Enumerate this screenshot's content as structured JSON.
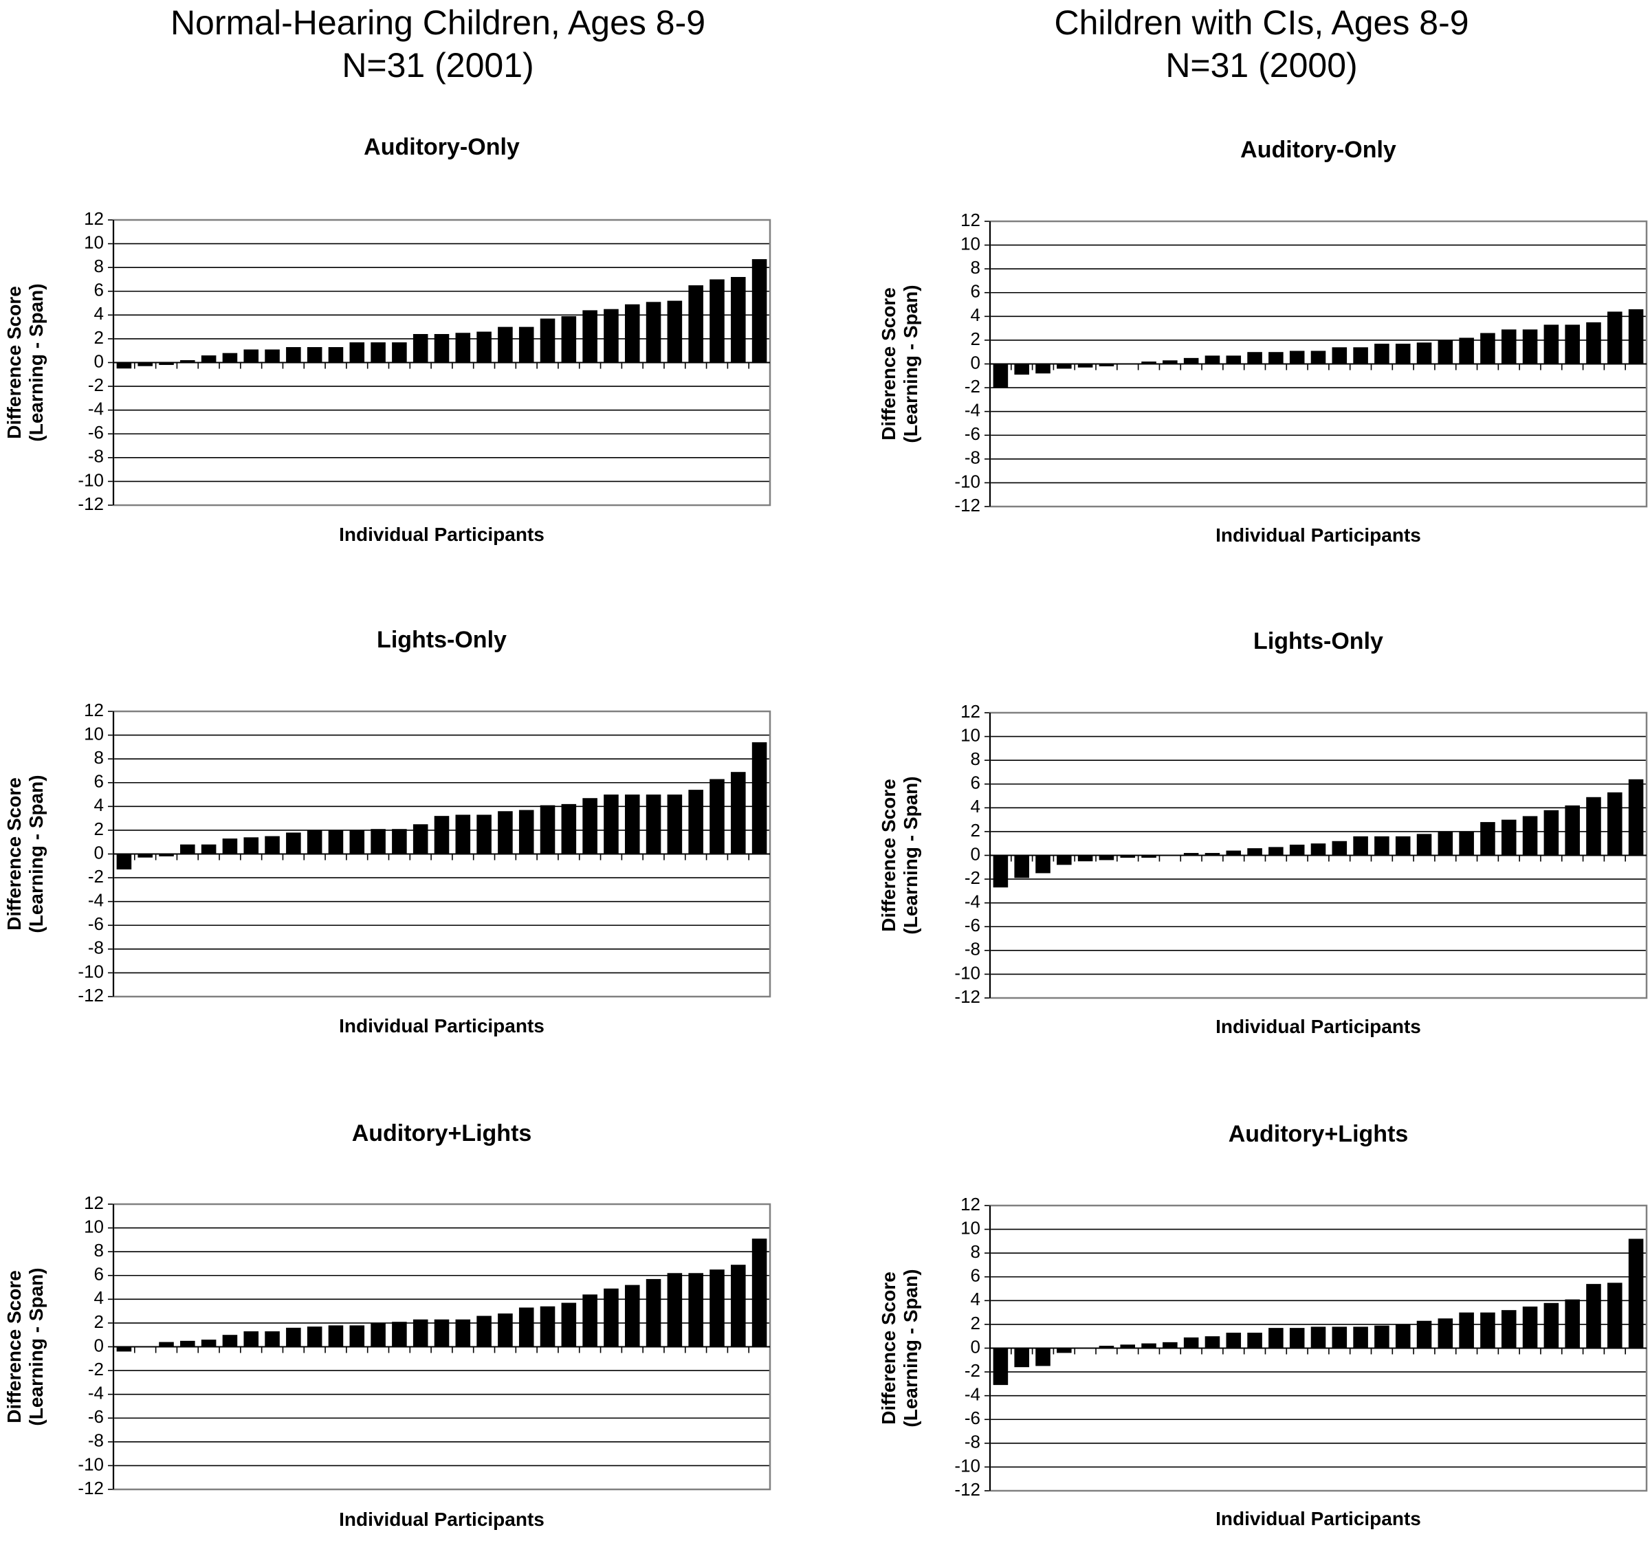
{
  "columns": [
    {
      "title_line1": "Normal-Hearing Children, Ages 8-9",
      "title_line2": "N=31 (2001)"
    },
    {
      "title_line1": "Children with CIs, Ages 8-9",
      "title_line2": "N=31 (2000)"
    }
  ],
  "colors": {
    "bar": "#000000",
    "grid": "#000000",
    "background": "#ffffff"
  },
  "chart_data": [
    {
      "type": "bar",
      "group": "Normal-Hearing Children, Ages 8-9",
      "title": "Auditory-Only",
      "xlabel": "Individual Participants",
      "ylabel": [
        "Difference Score",
        "(Learning - Span)"
      ],
      "ylim": [
        -12,
        12
      ],
      "yticks": [
        12,
        10,
        8,
        6,
        4,
        2,
        0,
        -2,
        -4,
        -6,
        -8,
        -10,
        -12
      ],
      "grid": true,
      "values": [
        -0.5,
        -0.3,
        -0.2,
        0.2,
        0.6,
        0.8,
        1.1,
        1.1,
        1.3,
        1.3,
        1.3,
        1.7,
        1.7,
        1.7,
        2.4,
        2.4,
        2.5,
        2.6,
        3.0,
        3.0,
        3.7,
        3.9,
        4.4,
        4.5,
        4.9,
        5.1,
        5.2,
        6.5,
        7.0,
        7.2,
        8.7
      ]
    },
    {
      "type": "bar",
      "group": "Normal-Hearing Children, Ages 8-9",
      "title": "Lights-Only",
      "xlabel": "Individual Participants",
      "ylabel": [
        "Difference Score",
        "(Learning - Span)"
      ],
      "ylim": [
        -12,
        12
      ],
      "yticks": [
        12,
        10,
        8,
        6,
        4,
        2,
        0,
        -2,
        -4,
        -6,
        -8,
        -10,
        -12
      ],
      "grid": true,
      "values": [
        -1.3,
        -0.3,
        -0.2,
        0.8,
        0.8,
        1.3,
        1.4,
        1.5,
        1.8,
        2.0,
        2.0,
        2.0,
        2.1,
        2.1,
        2.5,
        3.2,
        3.3,
        3.3,
        3.6,
        3.7,
        4.1,
        4.2,
        4.7,
        5.0,
        5.0,
        5.0,
        5.0,
        5.4,
        6.3,
        6.9,
        9.4
      ]
    },
    {
      "type": "bar",
      "group": "Normal-Hearing Children, Ages 8-9",
      "title": "Auditory+Lights",
      "xlabel": "Individual Participants",
      "ylabel": [
        "Difference Score",
        "(Learning - Span)"
      ],
      "ylim": [
        -12,
        12
      ],
      "yticks": [
        12,
        10,
        8,
        6,
        4,
        2,
        0,
        -2,
        -4,
        -6,
        -8,
        -10,
        -12
      ],
      "grid": true,
      "values": [
        -0.4,
        0.0,
        0.4,
        0.5,
        0.6,
        1.0,
        1.3,
        1.3,
        1.6,
        1.7,
        1.8,
        1.8,
        2.0,
        2.1,
        2.3,
        2.3,
        2.3,
        2.6,
        2.8,
        3.3,
        3.4,
        3.7,
        4.4,
        4.9,
        5.2,
        5.7,
        6.2,
        6.2,
        6.5,
        6.9,
        9.1
      ]
    },
    {
      "type": "bar",
      "group": "Children with CIs, Ages 8-9",
      "title": "Auditory-Only",
      "xlabel": "Individual Participants",
      "ylabel": [
        "Difference Score",
        "(Learning - Span)"
      ],
      "ylim": [
        -12,
        12
      ],
      "yticks": [
        12,
        10,
        8,
        6,
        4,
        2,
        0,
        -2,
        -4,
        -6,
        -8,
        -10,
        -12
      ],
      "grid": true,
      "values": [
        -2.0,
        -0.9,
        -0.8,
        -0.4,
        -0.3,
        -0.2,
        0.0,
        0.2,
        0.3,
        0.5,
        0.7,
        0.7,
        1.0,
        1.0,
        1.1,
        1.1,
        1.4,
        1.4,
        1.7,
        1.7,
        1.8,
        2.0,
        2.2,
        2.6,
        2.9,
        2.9,
        3.3,
        3.3,
        3.5,
        4.4,
        4.6
      ]
    },
    {
      "type": "bar",
      "group": "Children with CIs, Ages 8-9",
      "title": "Lights-Only",
      "xlabel": "Individual Participants",
      "ylabel": [
        "Difference Score",
        "(Learning - Span)"
      ],
      "ylim": [
        -12,
        12
      ],
      "yticks": [
        12,
        10,
        8,
        6,
        4,
        2,
        0,
        -2,
        -4,
        -6,
        -8,
        -10,
        -12
      ],
      "grid": true,
      "values": [
        -2.7,
        -1.9,
        -1.5,
        -0.8,
        -0.5,
        -0.4,
        -0.2,
        -0.2,
        0.0,
        0.2,
        0.2,
        0.4,
        0.6,
        0.7,
        0.9,
        1.0,
        1.2,
        1.6,
        1.6,
        1.6,
        1.8,
        2.0,
        2.0,
        2.8,
        3.0,
        3.3,
        3.8,
        4.2,
        4.9,
        5.3,
        6.4
      ]
    },
    {
      "type": "bar",
      "group": "Children with CIs, Ages 8-9",
      "title": "Auditory+Lights",
      "xlabel": "Individual Participants",
      "ylabel": [
        "Difference Score",
        "(Learning - Span)"
      ],
      "ylim": [
        -12,
        12
      ],
      "yticks": [
        12,
        10,
        8,
        6,
        4,
        2,
        0,
        -2,
        -4,
        -6,
        -8,
        -10,
        -12
      ],
      "grid": true,
      "values": [
        -3.1,
        -1.6,
        -1.5,
        -0.4,
        0.0,
        0.2,
        0.3,
        0.4,
        0.5,
        0.9,
        1.0,
        1.3,
        1.3,
        1.7,
        1.7,
        1.8,
        1.8,
        1.8,
        1.9,
        2.0,
        2.3,
        2.5,
        3.0,
        3.0,
        3.2,
        3.5,
        3.8,
        4.1,
        5.4,
        5.5,
        9.2
      ]
    }
  ]
}
